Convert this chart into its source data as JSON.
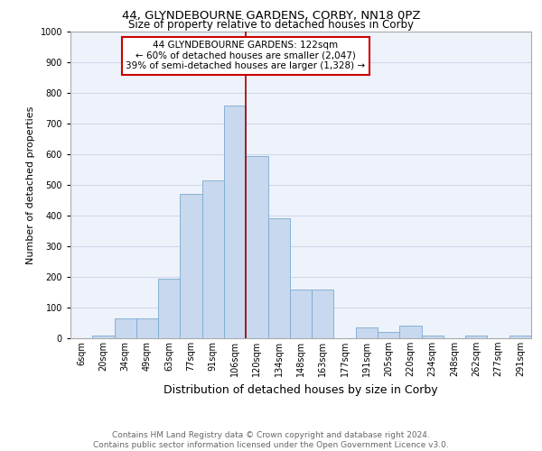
{
  "title1": "44, GLYNDEBOURNE GARDENS, CORBY, NN18 0PZ",
  "title2": "Size of property relative to detached houses in Corby",
  "xlabel": "Distribution of detached houses by size in Corby",
  "ylabel": "Number of detached properties",
  "footer": "Contains HM Land Registry data © Crown copyright and database right 2024.\nContains public sector information licensed under the Open Government Licence v3.0.",
  "categories": [
    "6sqm",
    "20sqm",
    "34sqm",
    "49sqm",
    "63sqm",
    "77sqm",
    "91sqm",
    "106sqm",
    "120sqm",
    "134sqm",
    "148sqm",
    "163sqm",
    "177sqm",
    "191sqm",
    "205sqm",
    "220sqm",
    "234sqm",
    "248sqm",
    "262sqm",
    "277sqm",
    "291sqm"
  ],
  "values": [
    0,
    10,
    65,
    65,
    195,
    470,
    515,
    760,
    595,
    390,
    160,
    160,
    0,
    35,
    20,
    42,
    10,
    0,
    10,
    0,
    10
  ],
  "bar_color": "#c8d8ef",
  "bar_edge_color": "#7aaad0",
  "ylim": [
    0,
    1000
  ],
  "yticks": [
    0,
    100,
    200,
    300,
    400,
    500,
    600,
    700,
    800,
    900,
    1000
  ],
  "property_label": "44 GLYNDEBOURNE GARDENS: 122sqm",
  "annotation_line1": "← 60% of detached houses are smaller (2,047)",
  "annotation_line2": "39% of semi-detached houses are larger (1,328) →",
  "vline_x": 7.5,
  "vline_color": "#990000",
  "annotation_box_color": "#ffffff",
  "annotation_box_edge": "#cc0000",
  "background_color": "#eef2fa",
  "grid_color": "#d0d8e8",
  "title1_fontsize": 9.5,
  "title2_fontsize": 8.5,
  "ylabel_fontsize": 8,
  "xlabel_fontsize": 9,
  "tick_fontsize": 7,
  "footer_fontsize": 6.5,
  "ann_fontsize": 7.5
}
